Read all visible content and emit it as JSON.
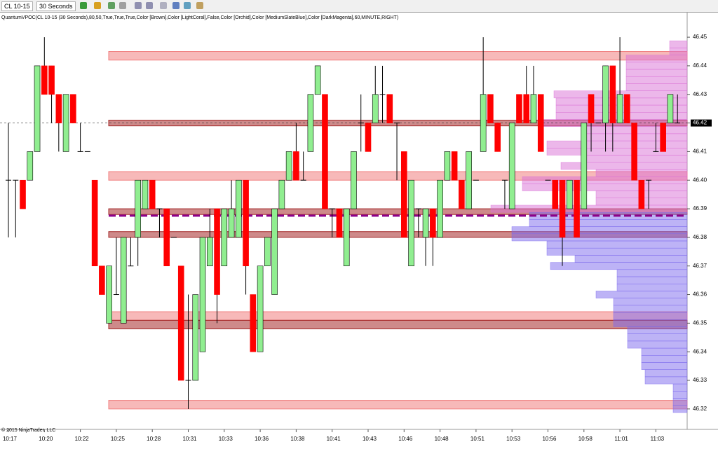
{
  "toolbar": {
    "instrument": "CL 10-15",
    "period": "30 Seconds"
  },
  "chart_data": {
    "type": "candlestick",
    "subtitle": "QuantumVPOC(CL 10-15 (30 Seconds),80,50,True,True,True,Color [Brown],Color [LightCoral],False,Color [Orchid],Color [MediumSlateBlue],Color [DarkMagenta],60,MINUTE,RIGHT)",
    "annotations": [
      "© 2015 NinjaTrader, LLC"
    ],
    "categories": [
      "10:17",
      null,
      null,
      null,
      null,
      "10:20",
      null,
      null,
      null,
      null,
      "10:22",
      null,
      null,
      null,
      null,
      "10:25",
      null,
      null,
      null,
      null,
      "10:28",
      null,
      null,
      null,
      null,
      "10:31",
      null,
      null,
      null,
      null,
      "10:33",
      null,
      null,
      null,
      null,
      "10:36",
      null,
      null,
      null,
      null,
      "10:38",
      null,
      null,
      null,
      null,
      "10:41",
      null,
      null,
      null,
      null,
      "10:43",
      null,
      null,
      null,
      null,
      "10:46",
      null,
      null,
      null,
      null,
      "10:48",
      null,
      null,
      null,
      null,
      "10:51",
      null,
      null,
      null,
      null,
      "10:53",
      null,
      null,
      null,
      null,
      "10:56",
      null,
      null,
      null,
      null,
      "10:58",
      null,
      null,
      null,
      null,
      "11:01",
      null,
      null,
      null,
      null,
      "11:03",
      null,
      null,
      null
    ],
    "open": [
      46.4,
      46.4,
      46.4,
      46.4,
      46.41,
      46.44,
      46.44,
      46.43,
      46.41,
      46.43,
      46.41,
      46.41,
      46.4,
      46.37,
      46.35,
      46.36,
      46.35,
      46.37,
      46.38,
      46.39,
      46.4,
      46.39,
      46.39,
      46.38,
      46.37,
      46.33,
      46.33,
      46.34,
      46.37,
      46.39,
      46.37,
      46.38,
      46.38,
      46.4,
      46.36,
      46.34,
      46.37,
      46.36,
      46.39,
      46.4,
      46.41,
      46.4,
      46.41,
      46.43,
      46.43,
      46.39,
      46.39,
      46.37,
      46.39,
      46.42,
      46.42,
      46.42,
      46.43,
      46.43,
      46.42,
      46.41,
      46.37,
      46.39,
      46.38,
      46.39,
      46.38,
      46.4,
      46.41,
      46.4,
      46.39,
      46.4,
      46.41,
      46.43,
      46.42,
      46.4,
      46.39,
      46.43,
      46.43,
      46.42,
      46.43,
      46.4,
      46.4,
      46.4,
      46.39,
      46.4,
      46.39,
      46.43,
      46.42,
      46.42,
      46.44,
      46.42,
      46.43,
      46.42,
      46.4,
      46.4,
      46.41,
      46.42,
      46.42,
      46.42
    ],
    "high": [
      46.42,
      46.4,
      46.4,
      46.41,
      46.44,
      46.45,
      46.44,
      46.43,
      46.43,
      46.43,
      46.42,
      46.41,
      46.4,
      46.37,
      46.37,
      46.38,
      46.38,
      46.38,
      46.4,
      46.4,
      46.4,
      46.39,
      46.39,
      46.38,
      46.37,
      46.36,
      46.36,
      46.38,
      46.39,
      46.39,
      46.39,
      46.4,
      46.4,
      46.4,
      46.36,
      46.37,
      46.38,
      46.39,
      46.4,
      46.41,
      46.42,
      46.41,
      46.43,
      46.44,
      46.43,
      46.39,
      46.39,
      46.39,
      46.41,
      46.43,
      46.42,
      46.44,
      46.44,
      46.43,
      46.42,
      46.41,
      46.4,
      46.39,
      46.39,
      46.39,
      46.4,
      46.41,
      46.41,
      46.4,
      46.41,
      46.4,
      46.45,
      46.43,
      46.42,
      46.4,
      46.42,
      46.43,
      46.44,
      46.44,
      46.43,
      46.4,
      46.4,
      46.4,
      46.4,
      46.4,
      46.42,
      46.43,
      46.42,
      46.44,
      46.44,
      46.45,
      46.43,
      46.42,
      46.4,
      46.4,
      46.42,
      46.42,
      46.43,
      46.43
    ],
    "low": [
      46.38,
      46.38,
      46.39,
      46.4,
      46.41,
      46.43,
      46.42,
      46.41,
      46.41,
      46.42,
      46.41,
      46.41,
      46.37,
      46.36,
      46.35,
      46.36,
      46.35,
      46.37,
      46.37,
      46.39,
      46.39,
      46.38,
      46.37,
      46.38,
      46.33,
      46.32,
      46.33,
      46.34,
      46.37,
      46.35,
      46.37,
      46.38,
      46.38,
      46.36,
      46.34,
      46.34,
      46.37,
      46.36,
      46.39,
      46.4,
      46.4,
      46.4,
      46.41,
      46.43,
      46.39,
      46.38,
      46.38,
      46.37,
      46.39,
      46.41,
      46.41,
      46.42,
      46.42,
      46.42,
      46.4,
      46.38,
      46.37,
      46.38,
      46.37,
      46.37,
      46.38,
      46.4,
      46.4,
      46.39,
      46.39,
      46.4,
      46.41,
      46.42,
      46.41,
      46.39,
      46.39,
      46.42,
      46.42,
      46.42,
      46.41,
      46.4,
      46.39,
      46.37,
      46.39,
      46.38,
      46.39,
      46.41,
      46.42,
      46.41,
      46.41,
      46.42,
      46.42,
      46.4,
      46.39,
      46.39,
      46.41,
      46.41,
      46.42,
      46.42
    ],
    "close": [
      46.4,
      46.4,
      46.39,
      46.41,
      46.44,
      46.43,
      46.43,
      46.42,
      46.43,
      46.42,
      46.41,
      46.41,
      46.37,
      46.36,
      46.37,
      46.36,
      46.38,
      46.37,
      46.4,
      46.4,
      46.39,
      46.39,
      46.37,
      46.38,
      46.33,
      46.33,
      46.36,
      46.38,
      46.38,
      46.36,
      46.39,
      46.39,
      46.4,
      46.37,
      46.34,
      46.37,
      46.38,
      46.39,
      46.4,
      46.41,
      46.4,
      46.4,
      46.43,
      46.44,
      46.39,
      46.39,
      46.38,
      46.39,
      46.41,
      46.42,
      46.41,
      46.43,
      46.43,
      46.42,
      46.42,
      46.38,
      46.4,
      46.39,
      46.39,
      46.38,
      46.4,
      46.41,
      46.4,
      46.39,
      46.41,
      46.4,
      46.43,
      46.42,
      46.41,
      46.4,
      46.42,
      46.42,
      46.42,
      46.43,
      46.41,
      46.4,
      46.39,
      46.38,
      46.4,
      46.38,
      46.42,
      46.42,
      46.42,
      46.44,
      46.42,
      46.43,
      46.42,
      46.4,
      46.39,
      46.4,
      46.41,
      46.41,
      46.43,
      46.42
    ],
    "up_color": "#90ee90",
    "down_color": "#ff0000",
    "ylim": [
      46.3131,
      46.4586
    ],
    "yticks": [
      46.32,
      46.33,
      46.34,
      46.35,
      46.36,
      46.37,
      46.38,
      46.39,
      {
        "value": 46.4,
        "label": "46.40"
      },
      46.41,
      46.42,
      46.43,
      46.44,
      46.45
    ],
    "last_price": 46.42,
    "vpoc": 46.3876,
    "vpoc_color": "#8b008b",
    "zones": [
      {
        "low": 46.442,
        "high": 46.445,
        "color": "#f08080"
      },
      {
        "low": 46.419,
        "high": 46.421,
        "color": "#a52a2a"
      },
      {
        "low": 46.4,
        "high": 46.403,
        "color": "#f08080"
      },
      {
        "low": 46.388,
        "high": 46.39,
        "color": "#a52a2a"
      },
      {
        "low": 46.38,
        "high": 46.382,
        "color": "#a52a2a"
      },
      {
        "low": 46.351,
        "high": 46.354,
        "color": "#f08080"
      },
      {
        "low": 46.348,
        "high": 46.351,
        "color": "#a52a2a"
      },
      {
        "low": 46.32,
        "high": 46.323,
        "color": "#f08080"
      }
    ],
    "profile": {
      "upper_color": "#da70d6",
      "lower_color": "#7b68ee",
      "levels": [
        46.4475,
        46.445,
        46.4425,
        46.44,
        46.4375,
        46.435,
        46.4325,
        46.43,
        46.4275,
        46.425,
        46.4225,
        46.42,
        46.4175,
        46.415,
        46.4125,
        46.41,
        46.4075,
        46.405,
        46.4025,
        46.4,
        46.3975,
        46.395,
        46.3925,
        46.39,
        46.3875,
        46.385,
        46.3825,
        46.38,
        46.3775,
        46.375,
        46.3725,
        46.37,
        46.3675,
        46.365,
        46.3625,
        46.36,
        46.3575,
        46.355,
        46.3525,
        46.35,
        46.3475,
        46.345,
        46.3425,
        46.34,
        46.3375,
        46.335,
        46.3325,
        46.33,
        46.3275,
        46.325,
        46.3225,
        46.32
      ],
      "volumes": [
        25,
        25,
        87,
        87,
        87,
        87,
        87,
        190,
        187,
        187,
        187,
        210,
        150,
        150,
        200,
        200,
        150,
        180,
        130,
        235,
        235,
        130,
        130,
        280,
        225,
        225,
        250,
        250,
        200,
        200,
        160,
        195,
        100,
        100,
        100,
        130,
        105,
        105,
        105,
        105,
        85,
        85,
        85,
        65,
        65,
        65,
        60,
        60,
        20,
        20,
        20,
        20
      ]
    }
  }
}
